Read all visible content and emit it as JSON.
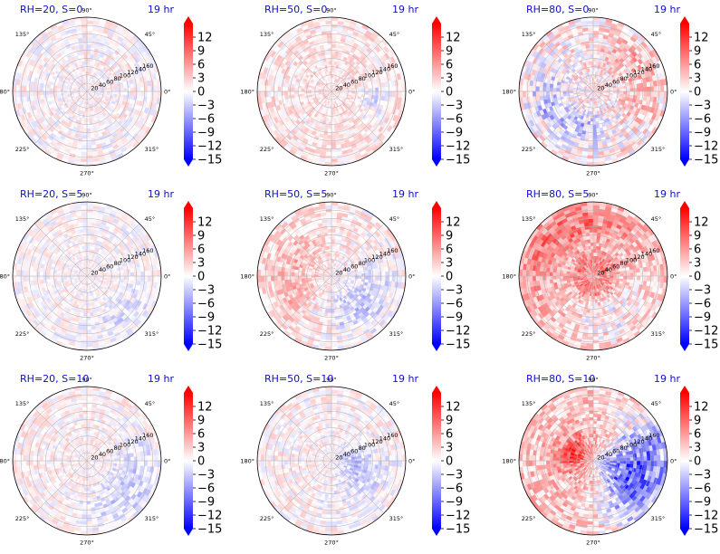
{
  "chart_data": [
    {
      "type": "heatmap",
      "projection": "polar",
      "title": "RH=20, S=0",
      "time_label": "19 hr",
      "angular_ticks": [
        "0°",
        "45°",
        "90°",
        "135°",
        "180°",
        "225°",
        "270°",
        "315°"
      ],
      "radial_ticks": [
        "20",
        "40",
        "60",
        "80",
        "100",
        "120",
        "140",
        "160"
      ],
      "rlim": [
        0,
        180
      ],
      "colorbar": {
        "ticks": [
          "12",
          "9",
          "6",
          "3",
          "0",
          "−3",
          "−6",
          "−9",
          "−12",
          "−15"
        ],
        "range": [
          -15,
          15
        ],
        "colormap": "bwr",
        "extend": "both"
      },
      "field": {
        "mean": 0.3,
        "spread": 1.6,
        "features": []
      }
    },
    {
      "type": "heatmap",
      "projection": "polar",
      "title": "RH=50, S=0",
      "time_label": "19 hr",
      "angular_ticks": [
        "0°",
        "45°",
        "90°",
        "135°",
        "180°",
        "225°",
        "270°",
        "315°"
      ],
      "radial_ticks": [
        "20",
        "40",
        "60",
        "80",
        "100",
        "120",
        "140",
        "160"
      ],
      "rlim": [
        0,
        180
      ],
      "colorbar": {
        "ticks": [
          "12",
          "9",
          "6",
          "3",
          "0",
          "−3",
          "−6",
          "−9",
          "−12",
          "−15"
        ],
        "range": [
          -15,
          15
        ],
        "colormap": "bwr",
        "extend": "both"
      },
      "field": {
        "mean": 1.3,
        "spread": 1.6,
        "features": [
          {
            "theta_deg": 350,
            "r": 110,
            "dtheta": 25,
            "dr": 30,
            "value": -3
          }
        ]
      }
    },
    {
      "type": "heatmap",
      "projection": "polar",
      "title": "RH=80, S=0",
      "time_label": "19 hr",
      "angular_ticks": [
        "0°",
        "45°",
        "90°",
        "135°",
        "180°",
        "225°",
        "270°",
        "315°"
      ],
      "radial_ticks": [
        "20",
        "40",
        "60",
        "80",
        "100",
        "120",
        "140",
        "160"
      ],
      "rlim": [
        0,
        180
      ],
      "colorbar": {
        "ticks": [
          "12",
          "9",
          "6",
          "3",
          "0",
          "−3",
          "−6",
          "−9",
          "−12",
          "−15"
        ],
        "range": [
          -15,
          15
        ],
        "colormap": "bwr",
        "extend": "both"
      },
      "field": {
        "mean": 1.0,
        "spread": 2.6,
        "features": [
          {
            "theta_deg": 190,
            "r": 110,
            "dtheta": 40,
            "dr": 45,
            "value": -4.5
          },
          {
            "theta_deg": 260,
            "r": 90,
            "dtheta": 40,
            "dr": 40,
            "value": -4
          },
          {
            "theta_deg": 20,
            "r": 120,
            "dtheta": 60,
            "dr": 50,
            "value": 3
          }
        ]
      }
    },
    {
      "type": "heatmap",
      "projection": "polar",
      "title": "RH=20, S=5",
      "time_label": "19 hr",
      "angular_ticks": [
        "0°",
        "45°",
        "90°",
        "135°",
        "180°",
        "225°",
        "270°",
        "315°"
      ],
      "radial_ticks": [
        "20",
        "40",
        "60",
        "80",
        "100",
        "120",
        "140",
        "160"
      ],
      "rlim": [
        0,
        180
      ],
      "colorbar": {
        "ticks": [
          "12",
          "9",
          "6",
          "3",
          "0",
          "−3",
          "−6",
          "−9",
          "−12",
          "−15"
        ],
        "range": [
          -15,
          15
        ],
        "colormap": "bwr",
        "extend": "both"
      },
      "field": {
        "mean": 0.2,
        "spread": 1.4,
        "features": [
          {
            "theta_deg": 315,
            "r": 130,
            "dtheta": 40,
            "dr": 40,
            "value": -2
          }
        ]
      }
    },
    {
      "type": "heatmap",
      "projection": "polar",
      "title": "RH=50, S=5",
      "time_label": "19 hr",
      "angular_ticks": [
        "0°",
        "45°",
        "90°",
        "135°",
        "180°",
        "225°",
        "270°",
        "315°"
      ],
      "radial_ticks": [
        "20",
        "40",
        "60",
        "80",
        "100",
        "120",
        "140",
        "160"
      ],
      "rlim": [
        0,
        180
      ],
      "colorbar": {
        "ticks": [
          "12",
          "9",
          "6",
          "3",
          "0",
          "−3",
          "−6",
          "−9",
          "−12",
          "−15"
        ],
        "range": [
          -15,
          15
        ],
        "colormap": "bwr",
        "extend": "both"
      },
      "field": {
        "mean": 0.8,
        "spread": 1.8,
        "features": [
          {
            "theta_deg": 180,
            "r": 100,
            "dtheta": 80,
            "dr": 70,
            "value": 3.5
          },
          {
            "theta_deg": 310,
            "r": 100,
            "dtheta": 70,
            "dr": 70,
            "value": -3.5
          }
        ]
      }
    },
    {
      "type": "heatmap",
      "projection": "polar",
      "title": "RH=80, S=5",
      "time_label": "19 hr",
      "angular_ticks": [
        "0°",
        "45°",
        "90°",
        "135°",
        "180°",
        "225°",
        "270°",
        "315°"
      ],
      "radial_ticks": [
        "20",
        "40",
        "60",
        "80",
        "100",
        "120",
        "140",
        "160"
      ],
      "rlim": [
        0,
        180
      ],
      "colorbar": {
        "ticks": [
          "12",
          "9",
          "6",
          "3",
          "0",
          "−3",
          "−6",
          "−9",
          "−12",
          "−15"
        ],
        "range": [
          -15,
          15
        ],
        "colormap": "bwr",
        "extend": "both"
      },
      "field": {
        "mean": 3.0,
        "spread": 2.2,
        "features": [
          {
            "theta_deg": 120,
            "r": 130,
            "dtheta": 80,
            "dr": 50,
            "value": 5
          },
          {
            "theta_deg": 0,
            "r": 30,
            "dtheta": 360,
            "dr": 25,
            "value": 5
          },
          {
            "theta_deg": 300,
            "r": 110,
            "dtheta": 60,
            "dr": 60,
            "value": -3
          }
        ]
      }
    },
    {
      "type": "heatmap",
      "projection": "polar",
      "title": "RH=20, S=10",
      "time_label": "19 hr",
      "angular_ticks": [
        "0°",
        "45°",
        "90°",
        "135°",
        "180°",
        "225°",
        "270°",
        "315°"
      ],
      "radial_ticks": [
        "20",
        "40",
        "60",
        "80",
        "100",
        "120",
        "140",
        "160"
      ],
      "rlim": [
        0,
        180
      ],
      "colorbar": {
        "ticks": [
          "12",
          "9",
          "6",
          "3",
          "0",
          "−3",
          "−6",
          "−9",
          "−12",
          "−15"
        ],
        "range": [
          -15,
          15
        ],
        "colormap": "bwr",
        "extend": "both"
      },
      "field": {
        "mean": 0.6,
        "spread": 1.5,
        "features": [
          {
            "theta_deg": 325,
            "r": 120,
            "dtheta": 55,
            "dr": 55,
            "value": -3.5
          }
        ]
      }
    },
    {
      "type": "heatmap",
      "projection": "polar",
      "title": "RH=50, S=10",
      "time_label": "19 hr",
      "angular_ticks": [
        "0°",
        "45°",
        "90°",
        "135°",
        "180°",
        "225°",
        "270°",
        "315°"
      ],
      "radial_ticks": [
        "20",
        "40",
        "60",
        "80",
        "100",
        "120",
        "140",
        "160"
      ],
      "rlim": [
        0,
        180
      ],
      "colorbar": {
        "ticks": [
          "12",
          "9",
          "6",
          "3",
          "0",
          "−3",
          "−6",
          "−9",
          "−12",
          "−15"
        ],
        "range": [
          -15,
          15
        ],
        "colormap": "bwr",
        "extend": "both"
      },
      "field": {
        "mean": 0.5,
        "spread": 1.6,
        "features": [
          {
            "theta_deg": 330,
            "r": 90,
            "dtheta": 50,
            "dr": 60,
            "value": -2.5
          },
          {
            "theta_deg": 0,
            "r": 50,
            "dtheta": 40,
            "dr": 30,
            "value": -3
          }
        ]
      }
    },
    {
      "type": "heatmap",
      "projection": "polar",
      "title": "RH=80, S=10",
      "time_label": "19 hr",
      "angular_ticks": [
        "0°",
        "45°",
        "90°",
        "135°",
        "180°",
        "225°",
        "270°",
        "315°"
      ],
      "radial_ticks": [
        "20",
        "40",
        "60",
        "80",
        "100",
        "120",
        "140",
        "160"
      ],
      "rlim": [
        0,
        180
      ],
      "colorbar": {
        "ticks": [
          "12",
          "9",
          "6",
          "3",
          "0",
          "−3",
          "−6",
          "−9",
          "−12",
          "−15"
        ],
        "range": [
          -15,
          15
        ],
        "colormap": "bwr",
        "extend": "both"
      },
      "field": {
        "mean": 3.2,
        "spread": 2.4,
        "features": [
          {
            "theta_deg": 0,
            "r": 110,
            "dtheta": 45,
            "dr": 110,
            "value": -10
          },
          {
            "theta_deg": 315,
            "r": 110,
            "dtheta": 40,
            "dr": 80,
            "value": -7
          },
          {
            "theta_deg": 160,
            "r": 50,
            "dtheta": 50,
            "dr": 40,
            "value": 8
          }
        ]
      }
    }
  ]
}
